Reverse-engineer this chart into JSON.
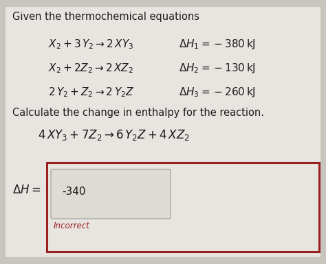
{
  "bg_color": "#c8c4be",
  "content_bg": "#e8e5e0",
  "title_text": "Given the thermochemical equations",
  "eq1_lhs": "$X_2 + 3\\,Y_2 \\rightarrow 2\\,XY_3$",
  "eq1_rhs": "$\\Delta H_1 = -380\\,\\mathrm{kJ}$",
  "eq2_lhs": "$X_2 + 2Z_2 \\rightarrow 2\\,XZ_2$",
  "eq2_rhs": "$\\Delta H_2 = -130\\,\\mathrm{kJ}$",
  "eq3_lhs": "$2\\,Y_2 + Z_2 \\rightarrow 2\\,Y_2Z$",
  "eq3_rhs": "$\\Delta H_3 = -260\\,\\mathrm{kJ}$",
  "calc_text": "Calculate the change in enthalpy for the reaction.",
  "target_eq": "$4\\,XY_3 + 7Z_2 \\rightarrow 6\\,Y_2Z + 4\\,XZ_2$",
  "answer_label": "$\\Delta H =$",
  "answer_value": "-340",
  "incorrect_text": "Incorrect",
  "box_border_color": "#9b2020",
  "incorrect_color": "#9b2020",
  "text_color": "#1a1a1a",
  "font_size_main": 10.5,
  "font_size_eq": 11,
  "font_size_target": 12
}
